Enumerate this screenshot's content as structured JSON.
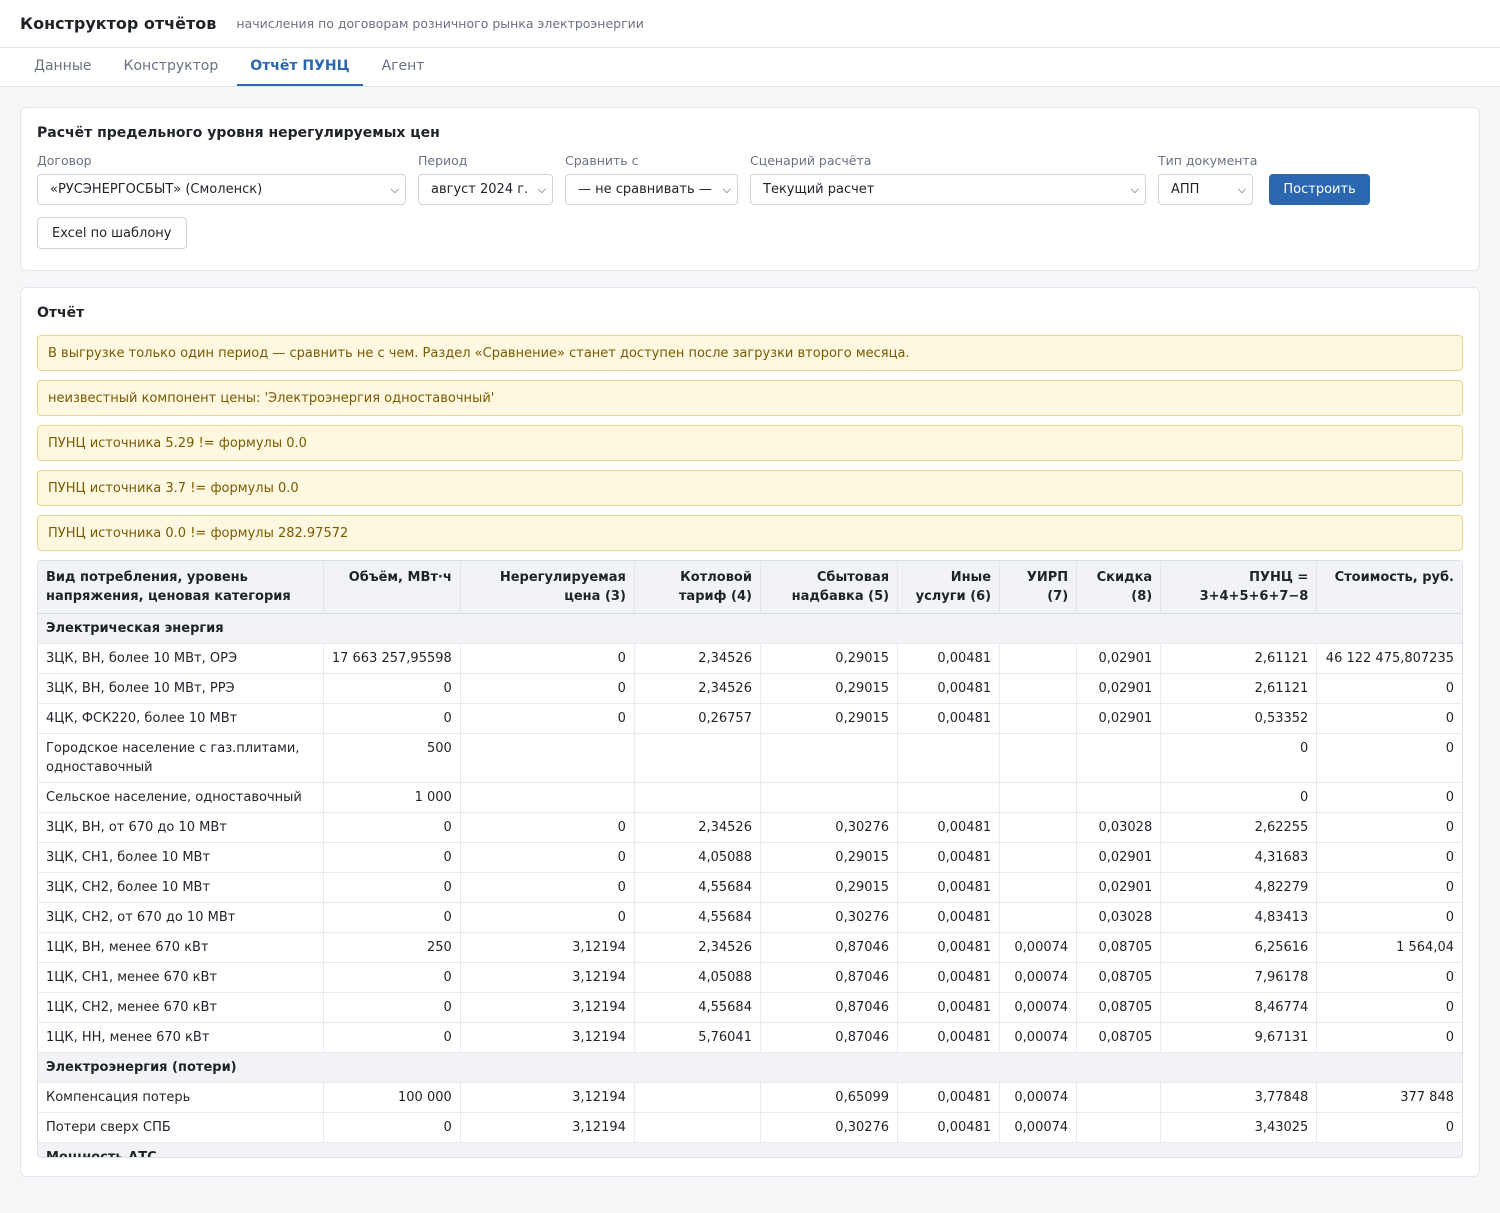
{
  "header": {
    "title": "Конструктор отчётов",
    "subtitle": "начисления по договорам розничного рынка электроэнергии"
  },
  "tabs": [
    {
      "label": "Данные",
      "active": false
    },
    {
      "label": "Конструктор",
      "active": false
    },
    {
      "label": "Отчёт ПУНЦ",
      "active": true
    },
    {
      "label": "Агент",
      "active": false
    }
  ],
  "calc": {
    "title": "Расчёт предельного уровня нерегулируемых цен",
    "contract": {
      "label": "Договор",
      "value": "«РУСЭНЕРГОСБЫТ» (Смоленск)"
    },
    "period": {
      "label": "Период",
      "value": "август 2024 г."
    },
    "compare": {
      "label": "Сравнить с",
      "value": "— не сравнивать —"
    },
    "scenario": {
      "label": "Сценарий расчёта",
      "value": "Текущий расчет"
    },
    "doctype": {
      "label": "Тип документа",
      "value": "АПП"
    },
    "build_label": "Построить",
    "excel_label": "Excel по шаблону"
  },
  "report": {
    "title": "Отчёт",
    "warnings": [
      "В выгрузке только один период — сравнить не с чем. Раздел «Сравнение» станет доступен после загрузки второго месяца.",
      "неизвестный компонент цены: 'Электроэнергия одноставочный'",
      "ПУНЦ источника 5.29 != формулы 0.0",
      "ПУНЦ источника 3.7 != формулы 0.0",
      "ПУНЦ источника 0.0 != формулы 282.97572"
    ],
    "columns": [
      "Вид потребления, уровень напряжения, ценовая категория",
      "Объём, МВт·ч",
      "Нерегулируемая цена (3)",
      "Котловой тариф (4)",
      "Сбытовая надбавка (5)",
      "Иные услуги (6)",
      "УИРП (7)",
      "Скидка (8)",
      "ПУНЦ = 3+4+5+6+7−8",
      "Стоимость, руб."
    ],
    "rows": [
      {
        "section": "Электрическая энергия"
      },
      {
        "cells": [
          "3ЦК, ВН, более 10 МВт, ОРЭ",
          "17 663 257,95598",
          "0",
          "2,34526",
          "0,29015",
          "0,00481",
          "",
          "0,02901",
          "2,61121",
          "46 122 475,807235"
        ]
      },
      {
        "cells": [
          "3ЦК, ВН, более 10 МВт, РРЭ",
          "0",
          "0",
          "2,34526",
          "0,29015",
          "0,00481",
          "",
          "0,02901",
          "2,61121",
          "0"
        ]
      },
      {
        "cells": [
          "4ЦК, ФСК220, более 10 МВт",
          "0",
          "0",
          "0,26757",
          "0,29015",
          "0,00481",
          "",
          "0,02901",
          "0,53352",
          "0"
        ]
      },
      {
        "cells": [
          "Городское население с газ.плитами, одноставочный",
          "500",
          "",
          "",
          "",
          "",
          "",
          "",
          "0",
          "0"
        ]
      },
      {
        "cells": [
          "Сельское население, одноставочный",
          "1 000",
          "",
          "",
          "",
          "",
          "",
          "",
          "0",
          "0"
        ]
      },
      {
        "cells": [
          "3ЦК, ВН, от 670 до 10 МВт",
          "0",
          "0",
          "2,34526",
          "0,30276",
          "0,00481",
          "",
          "0,03028",
          "2,62255",
          "0"
        ]
      },
      {
        "cells": [
          "3ЦК, СН1, более 10 МВт",
          "0",
          "0",
          "4,05088",
          "0,29015",
          "0,00481",
          "",
          "0,02901",
          "4,31683",
          "0"
        ]
      },
      {
        "cells": [
          "3ЦК, СН2, более 10 МВт",
          "0",
          "0",
          "4,55684",
          "0,29015",
          "0,00481",
          "",
          "0,02901",
          "4,82279",
          "0"
        ]
      },
      {
        "cells": [
          "3ЦК, СН2, от 670 до 10 МВт",
          "0",
          "0",
          "4,55684",
          "0,30276",
          "0,00481",
          "",
          "0,03028",
          "4,83413",
          "0"
        ]
      },
      {
        "cells": [
          "1ЦК, ВН, менее 670 кВт",
          "250",
          "3,12194",
          "2,34526",
          "0,87046",
          "0,00481",
          "0,00074",
          "0,08705",
          "6,25616",
          "1 564,04"
        ]
      },
      {
        "cells": [
          "1ЦК, СН1, менее 670 кВт",
          "0",
          "3,12194",
          "4,05088",
          "0,87046",
          "0,00481",
          "0,00074",
          "0,08705",
          "7,96178",
          "0"
        ]
      },
      {
        "cells": [
          "1ЦК, СН2, менее 670 кВт",
          "0",
          "3,12194",
          "4,55684",
          "0,87046",
          "0,00481",
          "0,00074",
          "0,08705",
          "8,46774",
          "0"
        ]
      },
      {
        "cells": [
          "1ЦК, НН, менее 670 кВт",
          "0",
          "3,12194",
          "5,76041",
          "0,87046",
          "0,00481",
          "0,00074",
          "0,08705",
          "9,67131",
          "0"
        ]
      },
      {
        "section": "Электроэнергия (потери)"
      },
      {
        "cells": [
          "Компенсация потерь",
          "100 000",
          "3,12194",
          "",
          "0,65099",
          "0,00481",
          "0,00074",
          "",
          "3,77848",
          "377 848"
        ]
      },
      {
        "cells": [
          "Потери сверх СПБ",
          "0",
          "3,12194",
          "",
          "0,30276",
          "0,00481",
          "0,00074",
          "",
          "3,43025",
          "0"
        ]
      },
      {
        "section": "Мощность АТС"
      }
    ]
  }
}
